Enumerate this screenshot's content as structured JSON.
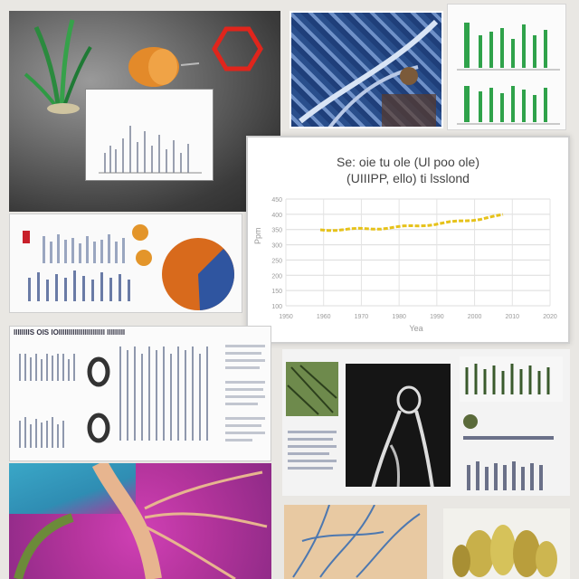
{
  "line_chart": {
    "title": "Se: oie tu ole (Ul poo ole)\n(UIIIPP, ello) ti lsslond",
    "ylabel": "Ppm",
    "xlabel": "Yea",
    "x_ticks": [
      "1950",
      "1960",
      "1970",
      "1980",
      "1990",
      "2000",
      "2010",
      "2020"
    ],
    "y_ticks": [
      "100",
      "150",
      "200",
      "250",
      "300",
      "350",
      "400",
      "450"
    ],
    "series_color": "#e6c21a"
  },
  "doc_heading": "IIIIIIIIS OIS IOIIIIIIIIIIIIIIIIIIIIIII IIIIIIIII",
  "colors": {
    "pie_orange": "#d86a1c",
    "pie_blue": "#2f55a0",
    "green_bar": "#2fa24a",
    "hexagon": "#e0251c"
  }
}
